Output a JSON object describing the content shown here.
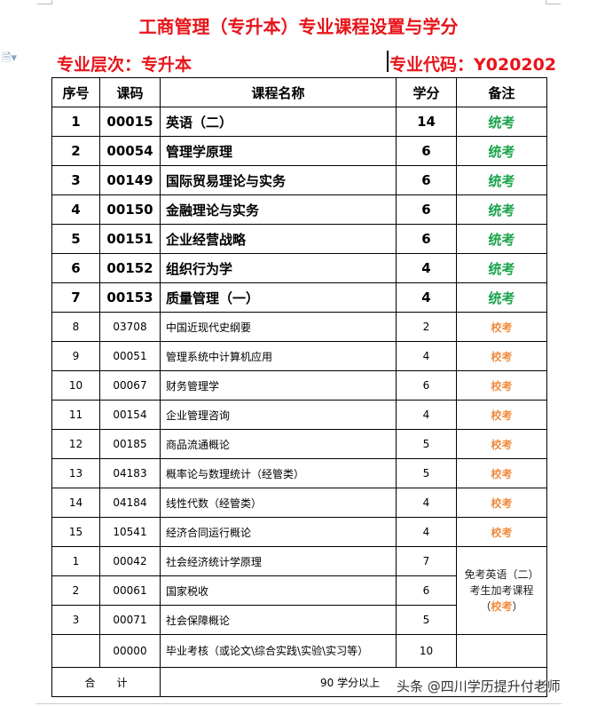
{
  "title": "工商管理（专升本）专业课程设置与学分",
  "level": "专业层次：专升本",
  "code": "专业代码：Y020202",
  "headers": [
    "序号",
    "课码",
    "课程名称",
    "学分",
    "备注"
  ],
  "colors": {
    "title": "#e8141a",
    "unified": "#1aa34a",
    "school": "#f08a3c"
  },
  "required": [
    {
      "no": "1",
      "code": "00015",
      "name": "英语（二）",
      "credit": "14",
      "note": "统考"
    },
    {
      "no": "2",
      "code": "00054",
      "name": "管理学原理",
      "credit": "6",
      "note": "统考"
    },
    {
      "no": "3",
      "code": "00149",
      "name": "国际贸易理论与实务",
      "credit": "6",
      "note": "统考"
    },
    {
      "no": "4",
      "code": "00150",
      "name": "金融理论与实务",
      "credit": "6",
      "note": "统考"
    },
    {
      "no": "5",
      "code": "00151",
      "name": "企业经营战略",
      "credit": "6",
      "note": "统考"
    },
    {
      "no": "6",
      "code": "00152",
      "name": "组织行为学",
      "credit": "4",
      "note": "统考"
    },
    {
      "no": "7",
      "code": "00153",
      "name": "质量管理（一）",
      "credit": "4",
      "note": "统考"
    }
  ],
  "school": [
    {
      "no": "8",
      "code": "03708",
      "name": "中国近现代史纲要",
      "credit": "2",
      "note": "校考"
    },
    {
      "no": "9",
      "code": "00051",
      "name": "管理系统中计算机应用",
      "credit": "4",
      "note": "校考"
    },
    {
      "no": "10",
      "code": "00067",
      "name": "财务管理学",
      "credit": "6",
      "note": "校考"
    },
    {
      "no": "11",
      "code": "00154",
      "name": "企业管理咨询",
      "credit": "4",
      "note": "校考"
    },
    {
      "no": "12",
      "code": "00185",
      "name": "商品流通概论",
      "credit": "5",
      "note": "校考"
    },
    {
      "no": "13",
      "code": "04183",
      "name": "概率论与数理统计（经管类）",
      "credit": "5",
      "note": "校考"
    },
    {
      "no": "14",
      "code": "04184",
      "name": "线性代数（经管类）",
      "credit": "4",
      "note": "校考"
    },
    {
      "no": "15",
      "code": "10541",
      "name": "经济合同运行概论",
      "credit": "4",
      "note": "校考"
    }
  ],
  "extra": [
    {
      "no": "1",
      "code": "00042",
      "name": "社会经济统计学原理",
      "credit": "7"
    },
    {
      "no": "2",
      "code": "00061",
      "name": "国家税收",
      "credit": "6"
    },
    {
      "no": "3",
      "code": "00071",
      "name": "社会保障概论",
      "credit": "5"
    }
  ],
  "extra_note": {
    "line1": "免考英语（二）",
    "line2": "考生加考课程",
    "open": "（",
    "school": "校考",
    "close": "）"
  },
  "thesis": {
    "no": "",
    "code": "00000",
    "name": "毕业考核（或论文\\综合实践\\实验\\实习等）",
    "credit": "10"
  },
  "total": {
    "label": "合　　计",
    "value": "90 学分以上"
  },
  "watermark": "头条 @四川学历提升付老师"
}
